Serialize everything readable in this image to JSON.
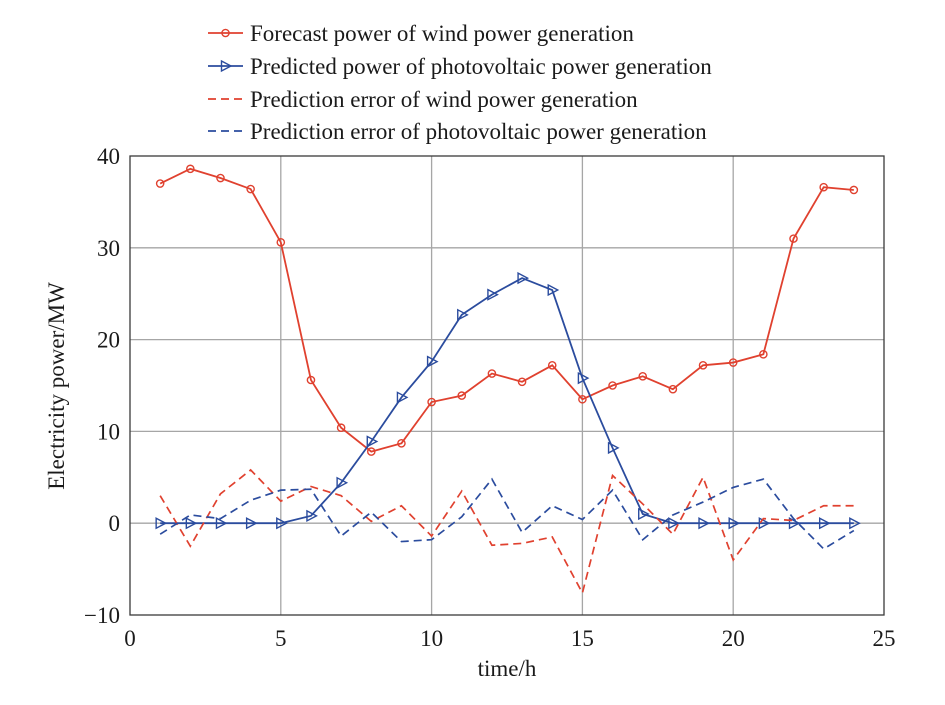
{
  "chart_data": {
    "type": "line",
    "title": "",
    "xlabel": "time/h",
    "ylabel": "Electricity power/MW",
    "xlim": [
      0,
      25
    ],
    "ylim": [
      -10,
      40
    ],
    "xticks": [
      0,
      5,
      10,
      15,
      20,
      25
    ],
    "yticks": [
      -10,
      0,
      10,
      20,
      30,
      40
    ],
    "xtick_labels": [
      "0",
      "5",
      "10",
      "15",
      "20",
      "25"
    ],
    "ytick_labels": [
      "−10",
      "0",
      "10",
      "20",
      "30",
      "40"
    ],
    "grid": true,
    "legend_position": "top",
    "x": [
      1,
      2,
      3,
      4,
      5,
      6,
      7,
      8,
      9,
      10,
      11,
      12,
      13,
      14,
      15,
      16,
      17,
      18,
      19,
      20,
      21,
      22,
      23,
      24
    ],
    "series": [
      {
        "name": "Forecast power of wind power generation",
        "color": "#e0412f",
        "style": "solid",
        "marker": "circle",
        "values": [
          37.0,
          38.6,
          37.6,
          36.4,
          30.6,
          15.6,
          10.4,
          7.8,
          8.7,
          13.2,
          13.9,
          16.3,
          15.4,
          17.2,
          13.5,
          15.0,
          16.0,
          14.6,
          17.2,
          17.5,
          18.4,
          31.0,
          36.6,
          36.3
        ]
      },
      {
        "name": "Predicted power of photovoltaic power generation",
        "color": "#2b4c9e",
        "style": "solid",
        "marker": "triangle-right",
        "values": [
          0,
          0,
          0,
          0,
          0,
          0.8,
          4.4,
          8.9,
          13.7,
          17.6,
          22.7,
          24.9,
          26.7,
          25.4,
          15.8,
          8.2,
          1.0,
          0,
          0,
          0,
          0,
          0,
          0,
          0
        ]
      },
      {
        "name": "Prediction error of wind power generation",
        "color": "#e0412f",
        "style": "dashed",
        "marker": "none",
        "values": [
          3.0,
          -2.5,
          3.2,
          5.8,
          2.4,
          4.0,
          3.0,
          0.2,
          1.9,
          -1.4,
          3.5,
          -2.4,
          -2.2,
          -1.5,
          -7.6,
          5.2,
          2.1,
          -1.2,
          5.0,
          -4.0,
          0.5,
          0.3,
          1.9,
          1.9
        ]
      },
      {
        "name": "Prediction error of photovoltaic power generation",
        "color": "#2b4c9e",
        "style": "dashed",
        "marker": "none",
        "values": [
          -1.2,
          0.9,
          0.5,
          2.5,
          3.6,
          3.7,
          -1.4,
          1.2,
          -2.0,
          -1.8,
          0.7,
          4.8,
          -1.0,
          1.9,
          0.4,
          3.6,
          -1.8,
          0.9,
          2.3,
          3.9,
          4.8,
          0.5,
          -2.8,
          -0.8
        ]
      }
    ]
  }
}
